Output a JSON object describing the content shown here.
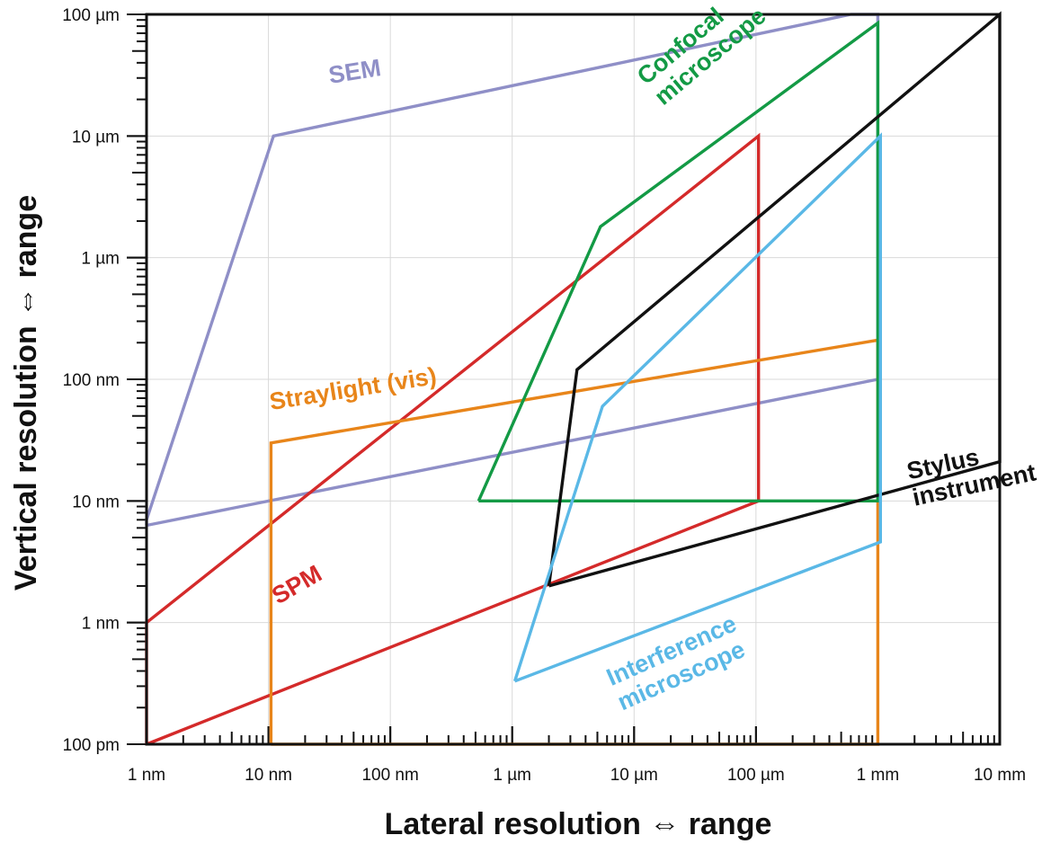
{
  "chart_data": {
    "type": "line",
    "title": "",
    "xlabel": "Lateral resolution ⇔ range",
    "ylabel": "Vertical resolution ⇔ range",
    "x_scale": "log",
    "y_scale": "log",
    "x_unit": "m",
    "y_unit": "m",
    "xlim": [
      1e-09,
      0.01
    ],
    "ylim": [
      1e-10,
      0.0001
    ],
    "grid": true,
    "x_ticks": [
      {
        "value": 1e-09,
        "label": "1 nm"
      },
      {
        "value": 1e-08,
        "label": "10 nm"
      },
      {
        "value": 1e-07,
        "label": "100 nm"
      },
      {
        "value": 1e-06,
        "label": "1 µm"
      },
      {
        "value": 1e-05,
        "label": "10 µm"
      },
      {
        "value": 0.0001,
        "label": "100 µm"
      },
      {
        "value": 0.001,
        "label": "1 mm"
      },
      {
        "value": 0.01,
        "label": "10 mm"
      }
    ],
    "y_ticks": [
      {
        "value": 1e-10,
        "label": "100 pm"
      },
      {
        "value": 1e-09,
        "label": "1 nm"
      },
      {
        "value": 1e-08,
        "label": "10 nm"
      },
      {
        "value": 1e-07,
        "label": "100 nm"
      },
      {
        "value": 1e-06,
        "label": "1 µm"
      },
      {
        "value": 1e-05,
        "label": "10 µm"
      },
      {
        "value": 0.0001,
        "label": "100 µm"
      }
    ],
    "series": [
      {
        "name": "SEM",
        "color": "#8f8fc7",
        "label_pos": [
          3.2e-08,
          2.7e-05
        ],
        "label_rotate": -9,
        "points": [
          [
            1e-09,
            6.3e-09
          ],
          [
            1e-09,
            7e-09
          ],
          [
            1.1e-08,
            1e-05
          ],
          [
            0.0006,
            0.0001
          ],
          [
            0.001,
            0.0001
          ],
          [
            0.001,
            1e-07
          ],
          [
            1e-09,
            6.3e-09
          ]
        ]
      },
      {
        "name": "SPM",
        "color": "#d42a2a",
        "label_pos": [
          1.2e-08,
          1.4e-09
        ],
        "label_rotate": -30,
        "points": [
          [
            1e-09,
            1e-10
          ],
          [
            1e-09,
            1e-09
          ],
          [
            0.000105,
            1e-05
          ],
          [
            0.000105,
            1e-08
          ],
          [
            1e-09,
            1e-10
          ]
        ]
      },
      {
        "name": "Straylight (vis)",
        "color": "#e8851a",
        "label_pos": [
          1.05e-08,
          5.6e-08
        ],
        "label_rotate": -9,
        "points": [
          [
            1.05e-08,
            1e-10
          ],
          [
            1.05e-08,
            3e-08
          ],
          [
            0.001,
            2.1e-07
          ],
          [
            0.001,
            1e-10
          ],
          [
            1.05e-08,
            1e-10
          ]
        ]
      },
      {
        "name": "Confocal microscope",
        "name_lines": [
          "Confocal",
          "microscope"
        ],
        "color": "#139a45",
        "label_pos": [
          1.25e-05,
          2.6e-05
        ],
        "label_rotate": -40,
        "points": [
          [
            5.3e-07,
            1e-08
          ],
          [
            5.3e-06,
            1.8e-06
          ],
          [
            0.001,
            8.5e-05
          ],
          [
            0.001,
            1e-08
          ],
          [
            5.3e-07,
            1e-08
          ]
        ]
      },
      {
        "name": "Stylus instrument",
        "name_lines": [
          "Stylus",
          "instrument"
        ],
        "color": "#111111",
        "label_pos": [
          0.0018,
          1.5e-08
        ],
        "label_rotate": -12,
        "points": [
          [
            2e-06,
            2e-09
          ],
          [
            3.4e-06,
            1.2e-07
          ],
          [
            0.01,
            0.0001
          ],
          [
            0.01,
            2.1e-08
          ],
          [
            2e-06,
            2e-09
          ]
        ]
      },
      {
        "name": "Interference microscope",
        "name_lines": [
          "Interference",
          "microscope"
        ],
        "color": "#5ab8e6",
        "label_pos": [
          6.5e-06,
          3e-10
        ],
        "label_rotate": -24,
        "points": [
          [
            1.05e-06,
            3.3e-10
          ],
          [
            5.5e-06,
            6e-08
          ],
          [
            0.00105,
            1e-05
          ],
          [
            0.00105,
            4.6e-09
          ],
          [
            1.05e-06,
            3.3e-10
          ]
        ]
      }
    ]
  }
}
